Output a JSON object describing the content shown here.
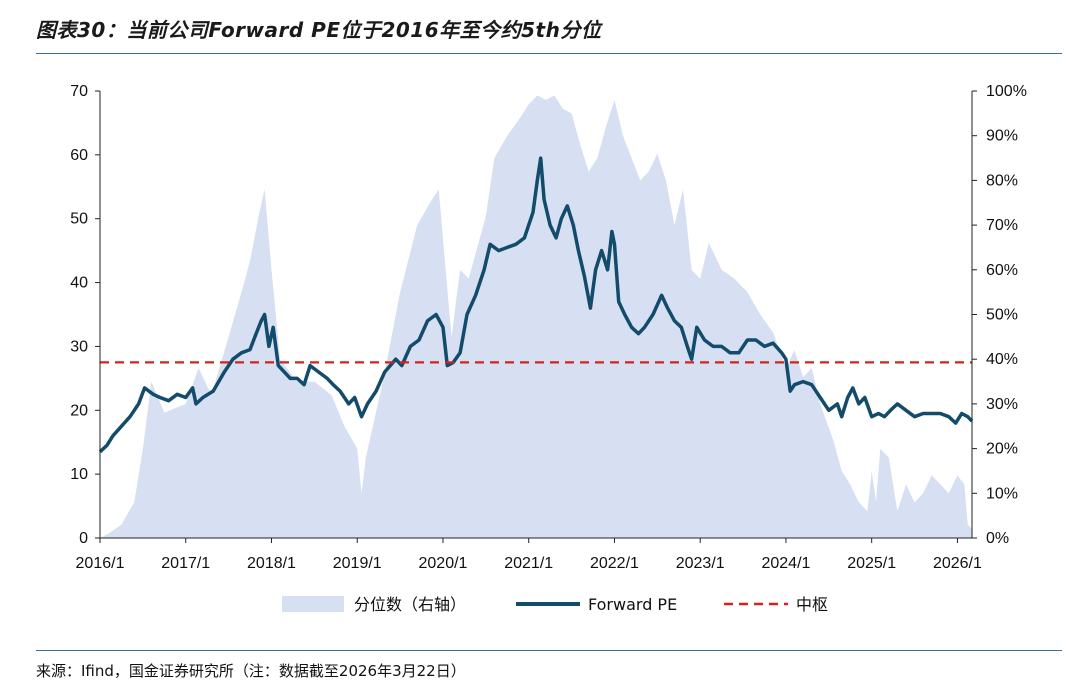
{
  "title": "图表30：当前公司Forward PE位于2016年至今约5th分位",
  "source": "来源：Ifind，国金证券研究所（注：数据截至2026年3月22日）",
  "chart_data": {
    "type": "line",
    "x_labels": [
      "2016/1",
      "2017/1",
      "2018/1",
      "2019/1",
      "2020/1",
      "2021/1",
      "2022/1",
      "2023/1",
      "2024/1",
      "2025/1",
      "2026/1"
    ],
    "x_range": [
      2016.0,
      2026.17
    ],
    "left_axis": {
      "min": 0,
      "max": 70,
      "ticks": [
        0,
        10,
        20,
        30,
        40,
        50,
        60,
        70
      ]
    },
    "right_axis": {
      "min": 0,
      "max": 100,
      "ticks": [
        "0%",
        "10%",
        "20%",
        "30%",
        "40%",
        "50%",
        "60%",
        "70%",
        "80%",
        "90%",
        "100%"
      ]
    },
    "series": [
      {
        "name": "分位数（右轴）",
        "axis": "right",
        "style": "area",
        "color": "#d6e0f2",
        "points": [
          [
            2016.0,
            0
          ],
          [
            2016.1,
            1
          ],
          [
            2016.25,
            3
          ],
          [
            2016.4,
            8
          ],
          [
            2016.5,
            20
          ],
          [
            2016.6,
            35
          ],
          [
            2016.75,
            28
          ],
          [
            2017.0,
            30
          ],
          [
            2017.15,
            38
          ],
          [
            2017.3,
            32
          ],
          [
            2017.5,
            45
          ],
          [
            2017.65,
            55
          ],
          [
            2017.75,
            62
          ],
          [
            2017.85,
            72
          ],
          [
            2017.92,
            78
          ],
          [
            2018.0,
            60
          ],
          [
            2018.1,
            40
          ],
          [
            2018.3,
            35
          ],
          [
            2018.5,
            35
          ],
          [
            2018.7,
            32
          ],
          [
            2018.85,
            25
          ],
          [
            2019.0,
            20
          ],
          [
            2019.05,
            10
          ],
          [
            2019.1,
            18
          ],
          [
            2019.3,
            35
          ],
          [
            2019.5,
            55
          ],
          [
            2019.7,
            70
          ],
          [
            2019.85,
            75
          ],
          [
            2019.95,
            78
          ],
          [
            2020.1,
            45
          ],
          [
            2020.2,
            60
          ],
          [
            2020.3,
            58
          ],
          [
            2020.4,
            65
          ],
          [
            2020.5,
            72
          ],
          [
            2020.6,
            85
          ],
          [
            2020.75,
            90
          ],
          [
            2020.9,
            94
          ],
          [
            2021.0,
            97
          ],
          [
            2021.1,
            99
          ],
          [
            2021.2,
            98
          ],
          [
            2021.3,
            99
          ],
          [
            2021.4,
            96
          ],
          [
            2021.5,
            95
          ],
          [
            2021.6,
            88
          ],
          [
            2021.7,
            82
          ],
          [
            2021.8,
            85
          ],
          [
            2021.9,
            92
          ],
          [
            2022.0,
            98
          ],
          [
            2022.1,
            90
          ],
          [
            2022.2,
            85
          ],
          [
            2022.3,
            80
          ],
          [
            2022.4,
            82
          ],
          [
            2022.5,
            86
          ],
          [
            2022.6,
            80
          ],
          [
            2022.7,
            70
          ],
          [
            2022.8,
            78
          ],
          [
            2022.9,
            60
          ],
          [
            2023.0,
            58
          ],
          [
            2023.1,
            66
          ],
          [
            2023.25,
            60
          ],
          [
            2023.4,
            58
          ],
          [
            2023.55,
            55
          ],
          [
            2023.7,
            50
          ],
          [
            2023.85,
            46
          ],
          [
            2024.0,
            38
          ],
          [
            2024.1,
            42
          ],
          [
            2024.2,
            36
          ],
          [
            2024.3,
            38
          ],
          [
            2024.4,
            30
          ],
          [
            2024.55,
            22
          ],
          [
            2024.65,
            15
          ],
          [
            2024.75,
            12
          ],
          [
            2024.85,
            8
          ],
          [
            2024.95,
            6
          ],
          [
            2025.0,
            15
          ],
          [
            2025.05,
            8
          ],
          [
            2025.1,
            20
          ],
          [
            2025.2,
            18
          ],
          [
            2025.3,
            6
          ],
          [
            2025.4,
            12
          ],
          [
            2025.5,
            8
          ],
          [
            2025.6,
            10
          ],
          [
            2025.7,
            14
          ],
          [
            2025.8,
            12
          ],
          [
            2025.9,
            10
          ],
          [
            2026.0,
            14
          ],
          [
            2026.08,
            12
          ],
          [
            2026.12,
            3
          ],
          [
            2026.17,
            2
          ]
        ]
      },
      {
        "name": "Forward PE",
        "axis": "left",
        "style": "line",
        "color": "#134b6b",
        "points": [
          [
            2016.0,
            13.5
          ],
          [
            2016.08,
            14.5
          ],
          [
            2016.15,
            16
          ],
          [
            2016.25,
            17.5
          ],
          [
            2016.35,
            19
          ],
          [
            2016.45,
            21
          ],
          [
            2016.52,
            23.5
          ],
          [
            2016.62,
            22.5
          ],
          [
            2016.7,
            22
          ],
          [
            2016.8,
            21.5
          ],
          [
            2016.9,
            22.5
          ],
          [
            2017.0,
            22
          ],
          [
            2017.08,
            23.5
          ],
          [
            2017.12,
            21
          ],
          [
            2017.2,
            22
          ],
          [
            2017.32,
            23
          ],
          [
            2017.45,
            26
          ],
          [
            2017.55,
            28
          ],
          [
            2017.65,
            29
          ],
          [
            2017.75,
            29.5
          ],
          [
            2017.82,
            32
          ],
          [
            2017.88,
            34
          ],
          [
            2017.92,
            35
          ],
          [
            2017.97,
            30
          ],
          [
            2018.02,
            33
          ],
          [
            2018.08,
            27
          ],
          [
            2018.15,
            26
          ],
          [
            2018.22,
            25
          ],
          [
            2018.3,
            25
          ],
          [
            2018.38,
            24
          ],
          [
            2018.45,
            27
          ],
          [
            2018.55,
            26
          ],
          [
            2018.65,
            25
          ],
          [
            2018.72,
            24
          ],
          [
            2018.8,
            23
          ],
          [
            2018.9,
            21
          ],
          [
            2018.97,
            22
          ],
          [
            2019.05,
            19
          ],
          [
            2019.12,
            21
          ],
          [
            2019.22,
            23
          ],
          [
            2019.32,
            26
          ],
          [
            2019.45,
            28
          ],
          [
            2019.52,
            27
          ],
          [
            2019.62,
            30
          ],
          [
            2019.72,
            31
          ],
          [
            2019.82,
            34
          ],
          [
            2019.92,
            35
          ],
          [
            2020.0,
            33
          ],
          [
            2020.05,
            27
          ],
          [
            2020.12,
            27.5
          ],
          [
            2020.2,
            29
          ],
          [
            2020.28,
            35
          ],
          [
            2020.38,
            38
          ],
          [
            2020.48,
            42
          ],
          [
            2020.55,
            46
          ],
          [
            2020.65,
            45
          ],
          [
            2020.75,
            45.5
          ],
          [
            2020.85,
            46
          ],
          [
            2020.95,
            47
          ],
          [
            2021.0,
            49
          ],
          [
            2021.05,
            51
          ],
          [
            2021.1,
            56
          ],
          [
            2021.14,
            59.5
          ],
          [
            2021.18,
            53
          ],
          [
            2021.25,
            49
          ],
          [
            2021.32,
            47
          ],
          [
            2021.38,
            50
          ],
          [
            2021.45,
            52
          ],
          [
            2021.52,
            49
          ],
          [
            2021.58,
            45
          ],
          [
            2021.65,
            41
          ],
          [
            2021.72,
            36
          ],
          [
            2021.78,
            42
          ],
          [
            2021.85,
            45
          ],
          [
            2021.92,
            42
          ],
          [
            2021.97,
            48
          ],
          [
            2022.0,
            46
          ],
          [
            2022.05,
            37
          ],
          [
            2022.12,
            35
          ],
          [
            2022.2,
            33
          ],
          [
            2022.28,
            32
          ],
          [
            2022.35,
            33
          ],
          [
            2022.45,
            35
          ],
          [
            2022.55,
            38
          ],
          [
            2022.62,
            36
          ],
          [
            2022.7,
            34
          ],
          [
            2022.78,
            33
          ],
          [
            2022.85,
            30
          ],
          [
            2022.9,
            28
          ],
          [
            2022.96,
            33
          ],
          [
            2023.05,
            31
          ],
          [
            2023.15,
            30
          ],
          [
            2023.25,
            30
          ],
          [
            2023.35,
            29
          ],
          [
            2023.45,
            29
          ],
          [
            2023.55,
            31
          ],
          [
            2023.65,
            31
          ],
          [
            2023.75,
            30
          ],
          [
            2023.85,
            30.5
          ],
          [
            2023.95,
            29
          ],
          [
            2024.0,
            28
          ],
          [
            2024.05,
            23
          ],
          [
            2024.1,
            24
          ],
          [
            2024.2,
            24.5
          ],
          [
            2024.3,
            24
          ],
          [
            2024.4,
            22
          ],
          [
            2024.5,
            20
          ],
          [
            2024.6,
            21
          ],
          [
            2024.65,
            19
          ],
          [
            2024.72,
            22
          ],
          [
            2024.78,
            23.5
          ],
          [
            2024.85,
            21
          ],
          [
            2024.92,
            22
          ],
          [
            2025.0,
            19
          ],
          [
            2025.08,
            19.5
          ],
          [
            2025.15,
            19
          ],
          [
            2025.22,
            20
          ],
          [
            2025.3,
            21
          ],
          [
            2025.4,
            20
          ],
          [
            2025.5,
            19
          ],
          [
            2025.6,
            19.5
          ],
          [
            2025.7,
            19.5
          ],
          [
            2025.8,
            19.5
          ],
          [
            2025.9,
            19
          ],
          [
            2025.98,
            18
          ],
          [
            2026.05,
            19.5
          ],
          [
            2026.12,
            19
          ],
          [
            2026.17,
            18.3
          ]
        ]
      },
      {
        "name": "中枢",
        "axis": "left",
        "style": "dashed",
        "color": "#d6221b",
        "value": 27.5
      }
    ]
  }
}
